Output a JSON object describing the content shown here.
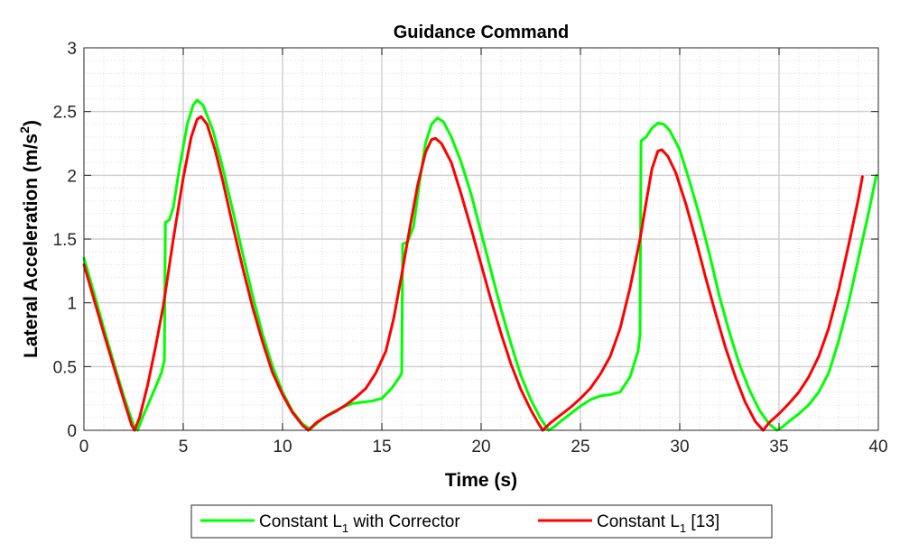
{
  "chart_data": {
    "type": "line",
    "title": "Guidance Command",
    "xlabel": "Time (s)",
    "ylabel_main": "Lateral Acceleration (m/s",
    "ylabel_sup": "2",
    "ylabel_close": ")",
    "xlim": [
      0,
      40
    ],
    "ylim": [
      0,
      3
    ],
    "xticks": [
      0,
      5,
      10,
      15,
      20,
      25,
      30,
      35,
      40
    ],
    "xtick_labels": [
      "0",
      "5",
      "10",
      "15",
      "20",
      "25",
      "30",
      "35",
      "40"
    ],
    "yticks": [
      0,
      0.5,
      1,
      1.5,
      2,
      2.5,
      3
    ],
    "ytick_labels": [
      "0",
      "0.5",
      "1",
      "1.5",
      "2",
      "2.5",
      "3"
    ],
    "grid": true,
    "minor_grid": true,
    "legend_placement": "bottom-outside",
    "series": [
      {
        "legend_pre": "Constant L",
        "legend_sub": "1",
        "legend_post": " with Corrector",
        "color": "#00ff00",
        "points": [
          [
            0,
            1.35
          ],
          [
            0.5,
            1.08
          ],
          [
            1,
            0.8
          ],
          [
            1.5,
            0.53
          ],
          [
            2,
            0.27
          ],
          [
            2.5,
            0.04
          ],
          [
            2.7,
            0.0
          ],
          [
            3.0,
            0.12
          ],
          [
            3.5,
            0.3
          ],
          [
            3.9,
            0.45
          ],
          [
            4.05,
            0.55
          ],
          [
            4.1,
            1.63
          ],
          [
            4.3,
            1.65
          ],
          [
            4.5,
            1.75
          ],
          [
            4.8,
            2.05
          ],
          [
            5.2,
            2.4
          ],
          [
            5.5,
            2.55
          ],
          [
            5.7,
            2.59
          ],
          [
            6.0,
            2.55
          ],
          [
            6.5,
            2.35
          ],
          [
            7,
            2.05
          ],
          [
            7.5,
            1.72
          ],
          [
            8,
            1.38
          ],
          [
            8.5,
            1.05
          ],
          [
            9,
            0.75
          ],
          [
            9.5,
            0.5
          ],
          [
            10,
            0.3
          ],
          [
            10.5,
            0.15
          ],
          [
            11,
            0.05
          ],
          [
            11.4,
            0.01
          ],
          [
            11.7,
            0.05
          ],
          [
            12,
            0.09
          ],
          [
            12.5,
            0.14
          ],
          [
            13,
            0.18
          ],
          [
            13.5,
            0.21
          ],
          [
            14,
            0.22
          ],
          [
            14.5,
            0.23
          ],
          [
            15,
            0.25
          ],
          [
            15.5,
            0.33
          ],
          [
            15.9,
            0.42
          ],
          [
            16.0,
            0.45
          ],
          [
            16.05,
            1.46
          ],
          [
            16.3,
            1.48
          ],
          [
            16.6,
            1.6
          ],
          [
            16.9,
            1.95
          ],
          [
            17.2,
            2.25
          ],
          [
            17.5,
            2.4
          ],
          [
            17.8,
            2.45
          ],
          [
            18.1,
            2.42
          ],
          [
            18.5,
            2.3
          ],
          [
            19,
            2.1
          ],
          [
            19.5,
            1.85
          ],
          [
            20,
            1.55
          ],
          [
            20.5,
            1.25
          ],
          [
            21,
            0.95
          ],
          [
            21.5,
            0.68
          ],
          [
            22,
            0.43
          ],
          [
            22.5,
            0.24
          ],
          [
            23,
            0.09
          ],
          [
            23.4,
            0.0
          ],
          [
            23.7,
            0.03
          ],
          [
            24,
            0.07
          ],
          [
            24.5,
            0.13
          ],
          [
            25,
            0.19
          ],
          [
            25.5,
            0.24
          ],
          [
            26,
            0.27
          ],
          [
            26.5,
            0.28
          ],
          [
            27,
            0.3
          ],
          [
            27.5,
            0.42
          ],
          [
            27.9,
            0.62
          ],
          [
            28.0,
            0.75
          ],
          [
            28.05,
            2.27
          ],
          [
            28.3,
            2.3
          ],
          [
            28.6,
            2.37
          ],
          [
            28.9,
            2.41
          ],
          [
            29.2,
            2.4
          ],
          [
            29.5,
            2.35
          ],
          [
            30,
            2.2
          ],
          [
            30.5,
            1.95
          ],
          [
            31,
            1.68
          ],
          [
            31.5,
            1.38
          ],
          [
            32,
            1.05
          ],
          [
            32.5,
            0.77
          ],
          [
            33,
            0.52
          ],
          [
            33.5,
            0.32
          ],
          [
            34,
            0.16
          ],
          [
            34.5,
            0.05
          ],
          [
            34.9,
            0.0
          ],
          [
            35.2,
            0.03
          ],
          [
            35.5,
            0.07
          ],
          [
            36,
            0.13
          ],
          [
            36.5,
            0.2
          ],
          [
            37,
            0.3
          ],
          [
            37.5,
            0.45
          ],
          [
            38,
            0.7
          ],
          [
            38.5,
            1.0
          ],
          [
            39,
            1.35
          ],
          [
            39.5,
            1.7
          ],
          [
            39.9,
            2.0
          ]
        ]
      },
      {
        "legend_pre": "Constant L",
        "legend_sub": "1",
        "legend_post": " [13]",
        "color": "#ff0000",
        "points": [
          [
            0,
            1.3
          ],
          [
            0.5,
            1.03
          ],
          [
            1,
            0.76
          ],
          [
            1.5,
            0.5
          ],
          [
            2,
            0.24
          ],
          [
            2.4,
            0.04
          ],
          [
            2.55,
            0.0
          ],
          [
            2.8,
            0.1
          ],
          [
            3.2,
            0.35
          ],
          [
            3.6,
            0.65
          ],
          [
            4,
            0.98
          ],
          [
            4.5,
            1.5
          ],
          [
            5,
            1.98
          ],
          [
            5.4,
            2.3
          ],
          [
            5.7,
            2.44
          ],
          [
            5.9,
            2.46
          ],
          [
            6.2,
            2.4
          ],
          [
            6.6,
            2.2
          ],
          [
            7,
            1.95
          ],
          [
            7.5,
            1.6
          ],
          [
            8,
            1.27
          ],
          [
            8.5,
            0.96
          ],
          [
            9,
            0.69
          ],
          [
            9.5,
            0.45
          ],
          [
            10,
            0.28
          ],
          [
            10.5,
            0.14
          ],
          [
            11,
            0.04
          ],
          [
            11.3,
            0.0
          ],
          [
            11.7,
            0.06
          ],
          [
            12.2,
            0.11
          ],
          [
            12.7,
            0.15
          ],
          [
            13.2,
            0.2
          ],
          [
            13.7,
            0.26
          ],
          [
            14.2,
            0.33
          ],
          [
            14.7,
            0.45
          ],
          [
            15.2,
            0.62
          ],
          [
            15.6,
            0.88
          ],
          [
            16,
            1.22
          ],
          [
            16.4,
            1.58
          ],
          [
            16.8,
            1.92
          ],
          [
            17.2,
            2.18
          ],
          [
            17.5,
            2.28
          ],
          [
            17.7,
            2.29
          ],
          [
            18,
            2.25
          ],
          [
            18.5,
            2.1
          ],
          [
            19,
            1.85
          ],
          [
            19.5,
            1.58
          ],
          [
            20,
            1.3
          ],
          [
            20.5,
            1.02
          ],
          [
            21,
            0.76
          ],
          [
            21.5,
            0.52
          ],
          [
            22,
            0.32
          ],
          [
            22.5,
            0.16
          ],
          [
            22.9,
            0.05
          ],
          [
            23.1,
            0.0
          ],
          [
            23.5,
            0.06
          ],
          [
            24,
            0.12
          ],
          [
            24.5,
            0.18
          ],
          [
            25,
            0.25
          ],
          [
            25.5,
            0.33
          ],
          [
            26,
            0.44
          ],
          [
            26.5,
            0.58
          ],
          [
            27,
            0.8
          ],
          [
            27.5,
            1.12
          ],
          [
            28,
            1.5
          ],
          [
            28.3,
            1.78
          ],
          [
            28.6,
            2.05
          ],
          [
            28.9,
            2.19
          ],
          [
            29.1,
            2.2
          ],
          [
            29.4,
            2.15
          ],
          [
            29.8,
            2.02
          ],
          [
            30.3,
            1.78
          ],
          [
            30.8,
            1.5
          ],
          [
            31.3,
            1.2
          ],
          [
            31.8,
            0.92
          ],
          [
            32.3,
            0.65
          ],
          [
            32.8,
            0.42
          ],
          [
            33.3,
            0.22
          ],
          [
            33.8,
            0.07
          ],
          [
            34.2,
            0.0
          ],
          [
            34.5,
            0.06
          ],
          [
            35,
            0.13
          ],
          [
            35.5,
            0.21
          ],
          [
            36,
            0.3
          ],
          [
            36.5,
            0.42
          ],
          [
            37,
            0.58
          ],
          [
            37.5,
            0.8
          ],
          [
            38,
            1.1
          ],
          [
            38.5,
            1.45
          ],
          [
            39,
            1.82
          ],
          [
            39.2,
            1.99
          ]
        ]
      }
    ]
  }
}
